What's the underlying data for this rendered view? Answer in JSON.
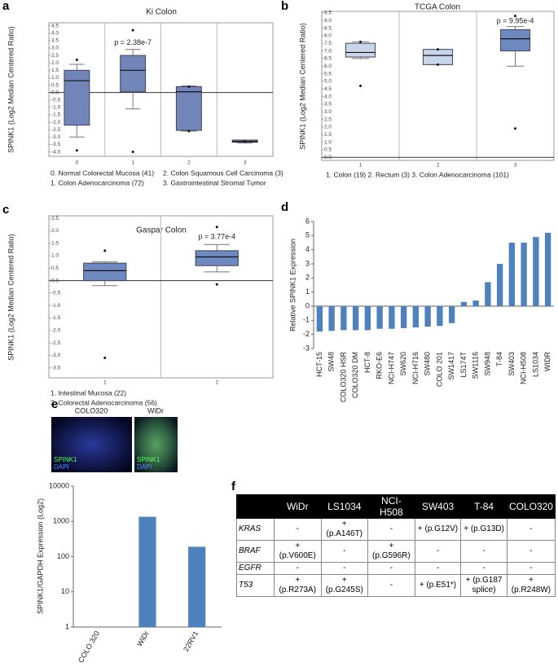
{
  "panel_labels": [
    "a",
    "b",
    "c",
    "d",
    "e",
    "f"
  ],
  "chart_data": [
    {
      "type": "box",
      "title": "Ki Colon",
      "y_label": "SPINK1 (Log2 Median Centered Ratio)",
      "categories": [
        "0",
        "1",
        "2",
        "3"
      ],
      "ylim": [
        -4.3,
        4.7
      ],
      "yticks": [
        4.5,
        {
          "value": 4,
          "label": "4.0"
        },
        3.5,
        {
          "value": 3,
          "label": "3.0"
        },
        2.5,
        {
          "value": 2,
          "label": "2.0"
        },
        1.5,
        {
          "value": 1,
          "label": "1.0"
        },
        0.5,
        {
          "value": 0,
          "label": "0.0"
        },
        -0.5,
        {
          "value": -1,
          "label": "-1.0"
        },
        -1.5,
        {
          "value": -2,
          "label": "-2.0"
        },
        -2.5,
        {
          "value": -3,
          "label": "-3.0"
        },
        -3.5,
        {
          "value": -4,
          "label": "-4.0"
        }
      ],
      "colors": [
        "#7185b8",
        "#7185b8",
        "#7185b8",
        "#7185b8"
      ],
      "grid": true,
      "boxes": [
        {
          "min": -3.0,
          "q1": -2.2,
          "median": 0.8,
          "q3": 1.5,
          "max": 1.9,
          "outliers": [
            2.2,
            -3.9
          ]
        },
        {
          "min": -1.1,
          "q1": 0.05,
          "median": 1.5,
          "q3": 2.5,
          "max": 2.9,
          "outliers": [
            4.2,
            -4.0
          ]
        },
        {
          "min": -2.6,
          "q1": -2.55,
          "median": 0.05,
          "q3": 0.4,
          "max": 0.45,
          "outliers": [
            0.4,
            -2.6
          ]
        },
        {
          "min": -3.4,
          "q1": -3.35,
          "median": -3.3,
          "q3": -3.2,
          "max": -3.2,
          "outliers": [
            -3.3
          ]
        }
      ],
      "annotation": "p = 2.38e-7",
      "notes": [
        "0. Normal Colorectal Mucosa (41)",
        "2. Colon Squamous Cell Carcinoma (3)",
        "1. Colon Adenocarcinoma (72)",
        "3. Gastrointestinal Stromal Tumor"
      ]
    },
    {
      "type": "box",
      "title": "TCGA Colon",
      "y_label": "SPINK1 (Log2 Median Centered Ratio)",
      "categories": [
        "1",
        "2",
        "3"
      ],
      "ylim": [
        -0.2,
        9.6
      ],
      "yticks": [
        9.5,
        {
          "value": 9,
          "label": "9.0"
        },
        8.5,
        {
          "value": 8,
          "label": "8.0"
        },
        7.5,
        {
          "value": 7,
          "label": "7.0"
        },
        6.5,
        {
          "value": 6,
          "label": "6.0"
        },
        5.5,
        {
          "value": 5,
          "label": "5.0"
        },
        4.5,
        {
          "value": 4,
          "label": "4.0"
        },
        3.5,
        {
          "value": 3,
          "label": "3.0"
        },
        2.5,
        {
          "value": 2,
          "label": "2.0"
        },
        1.5,
        {
          "value": 1,
          "label": "1.0"
        },
        0.5,
        {
          "value": 0,
          "label": "0.0"
        }
      ],
      "colors": [
        "#c8d5ea",
        "#c8d5ea",
        "#6d89bf"
      ],
      "grid": true,
      "boxes": [
        {
          "min": 6.5,
          "q1": 6.6,
          "median": 6.9,
          "q3": 7.5,
          "max": 7.6,
          "outliers": [
            7.6,
            4.7
          ]
        },
        {
          "min": 6.1,
          "q1": 6.1,
          "median": 6.7,
          "q3": 7.1,
          "max": 7.1,
          "outliers": [
            7.1,
            6.1
          ]
        },
        {
          "min": 6.0,
          "q1": 7.0,
          "median": 7.8,
          "q3": 8.4,
          "max": 8.6,
          "outliers": [
            9.3,
            1.9
          ]
        }
      ],
      "annotation": "p = 9.95e-4",
      "notes": [
        "1.  Colon (19)  2. Rectum (3)  3. Colon Adenocarcinoma (101)"
      ]
    },
    {
      "type": "box",
      "title": "Gaspar Colon",
      "y_label": "SPINK1 (Log2 Median Centered Ratio)",
      "categories": [
        "1",
        "2"
      ],
      "ylim": [
        -3.9,
        2.6
      ],
      "yticks": [
        2.5,
        {
          "value": 2,
          "label": "2.0"
        },
        1.5,
        {
          "value": 1,
          "label": "1.0"
        },
        0.5,
        {
          "value": 0,
          "label": "0.0"
        },
        -0.5,
        {
          "value": -1,
          "label": "-1.0"
        },
        -1.5,
        {
          "value": -2,
          "label": "-2.0"
        },
        -2.5,
        {
          "value": -3,
          "label": "-3.0"
        },
        -3.5
      ],
      "colors": [
        "#6d89bf",
        "#6d89bf"
      ],
      "grid": true,
      "boxes": [
        {
          "min": -0.2,
          "q1": 0.0,
          "median": 0.4,
          "q3": 0.7,
          "max": 0.75,
          "outliers": [
            1.2,
            -3.1
          ]
        },
        {
          "min": 0.35,
          "q1": 0.6,
          "median": 0.95,
          "q3": 1.2,
          "max": 1.45,
          "outliers": [
            2.15,
            -0.15
          ]
        }
      ],
      "annotation": "p = 3.77e-4",
      "notes": [
        "1. Intestinal Mucosa (22)",
        "2. Colorectal Adenocarcinoma (56)"
      ]
    },
    {
      "type": "bar",
      "y_label": "Relative SPINK1 Expression",
      "categories": [
        "HCT-15",
        "SW48",
        "COLO320 HSR",
        "COLO320 DM",
        "HCT-8",
        "RKO-E6",
        "NCI-H747",
        "SW620",
        "NCI-H716",
        "SW480",
        "COLO 201",
        "SW1417",
        "LS174T",
        "SW1116",
        "SW948",
        "T-84",
        "SW403",
        "NCI-H508",
        "LS1034",
        "WIDR"
      ],
      "values": [
        -1.8,
        -1.75,
        -1.7,
        -1.7,
        -1.7,
        -1.6,
        -1.6,
        -1.55,
        -1.5,
        -1.45,
        -1.4,
        -1.2,
        0.3,
        0.4,
        1.7,
        3.0,
        4.5,
        4.5,
        4.9,
        5.2
      ],
      "color": "#4f81bd",
      "ylim": [
        -3,
        6
      ],
      "yticks": [
        -3,
        -2,
        -1,
        0,
        1,
        2,
        3,
        4,
        5,
        6
      ]
    },
    {
      "type": "bar",
      "y_label": "SPINK1/GAPDH Expression (Log2)",
      "categories": [
        "COLO 320",
        "WiDr",
        "22RV1"
      ],
      "values": [
        1,
        1350,
        190
      ],
      "color": "#4f81bd",
      "log_scale": true,
      "ylim": [
        1,
        10000
      ],
      "yticks": [
        1,
        10,
        100,
        1000,
        10000
      ]
    }
  ],
  "microscopy": [
    {
      "title": "COLO320",
      "stains": [
        "SPINK1",
        "DAPI"
      ]
    },
    {
      "title": "WiDr",
      "stains": [
        "SPINK1",
        "DAPI"
      ]
    }
  ],
  "table": {
    "columns": [
      "WiDr",
      "LS1034",
      "NCI-H508",
      "SW403",
      "T-84",
      "COLO320"
    ],
    "rows": [
      {
        "gene": "KRAS",
        "cells": [
          "-",
          "+ (p.A146T)",
          "-",
          "+ (p.G12V)",
          "+ (p.G13D)",
          "-"
        ]
      },
      {
        "gene": "BRAF",
        "cells": [
          "+ (p.V600E)",
          "-",
          "+ (p.G596R)",
          "-",
          "-",
          "-"
        ]
      },
      {
        "gene": "EGFR",
        "cells": [
          "-",
          "-",
          "-",
          "-",
          "-",
          "-"
        ]
      },
      {
        "gene": "T53",
        "cells": [
          "+ (p.R273A)",
          "+ (p.G245S)",
          "-",
          "+ (p.E51*)",
          "+ (p.G187 splice)",
          "+ (p.R248W)"
        ]
      }
    ]
  }
}
